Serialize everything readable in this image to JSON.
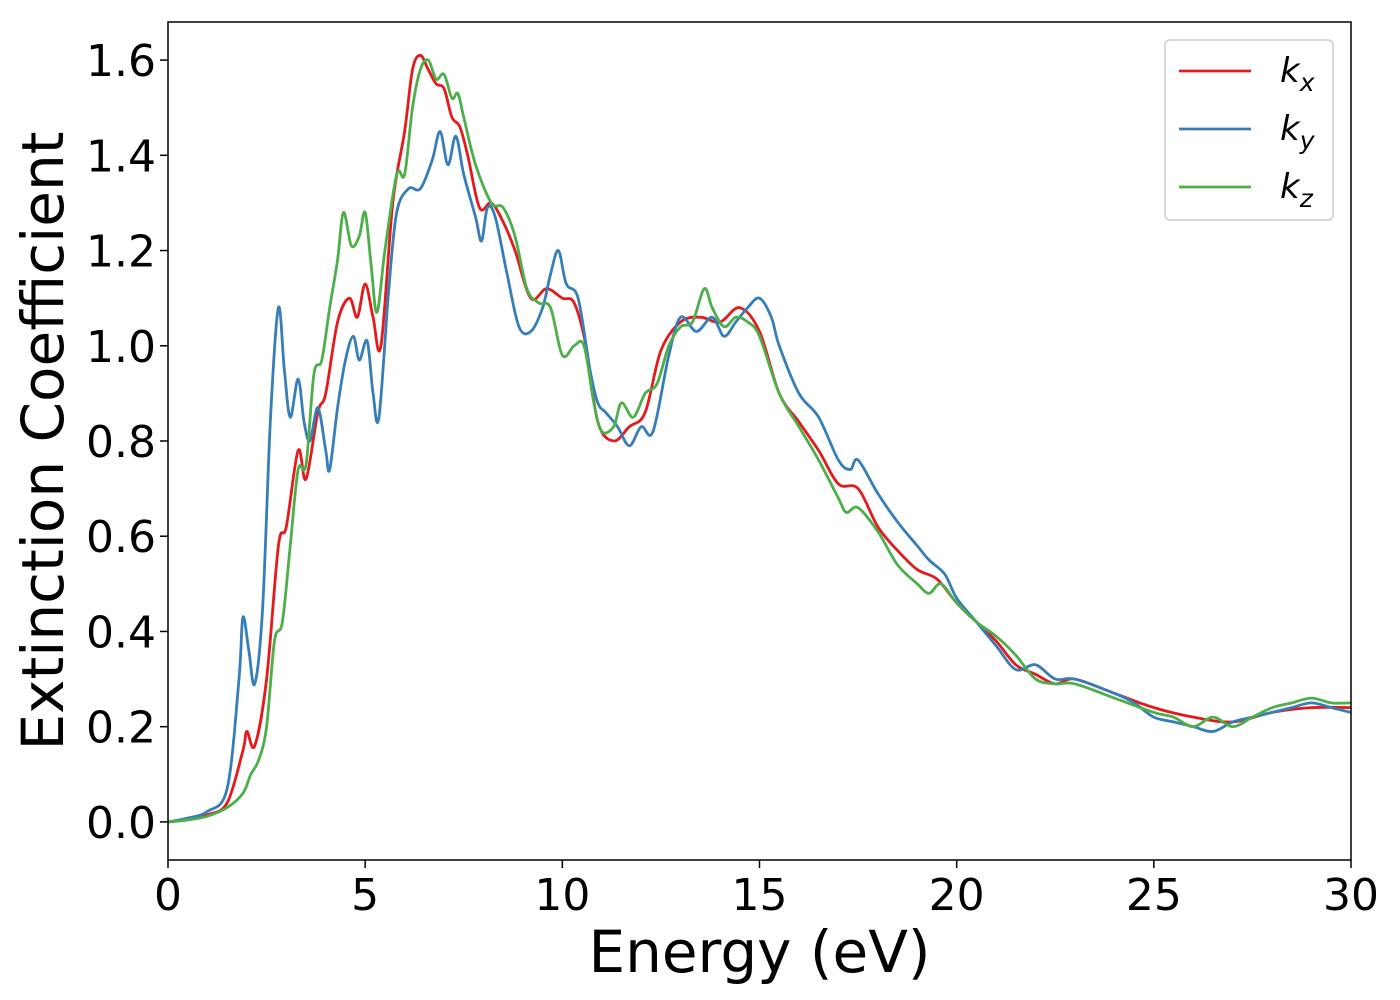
{
  "chart_data": {
    "type": "line",
    "title": "",
    "xlabel": "Energy (eV)",
    "ylabel": "Extinction Coefficient",
    "xlim": [
      0,
      30
    ],
    "ylim": [
      -0.08,
      1.68
    ],
    "xticks": [
      0,
      5,
      10,
      15,
      20,
      25,
      30
    ],
    "xtick_labels": [
      "0",
      "5",
      "10",
      "15",
      "20",
      "25",
      "30"
    ],
    "yticks": [
      0.0,
      0.2,
      0.4,
      0.6,
      0.8,
      1.0,
      1.2,
      1.4,
      1.6
    ],
    "ytick_labels": [
      "0.0",
      "0.2",
      "0.4",
      "0.6",
      "0.8",
      "1.0",
      "1.2",
      "1.4",
      "1.6"
    ],
    "grid": false,
    "legend_position": "top-right",
    "series": [
      {
        "name": "k",
        "subscript": "x",
        "color": "#e41a1c",
        "points": [
          [
            0,
            0
          ],
          [
            0.5,
            0.005
          ],
          [
            1,
            0.015
          ],
          [
            1.5,
            0.04
          ],
          [
            1.9,
            0.15
          ],
          [
            2.0,
            0.19
          ],
          [
            2.2,
            0.16
          ],
          [
            2.5,
            0.3
          ],
          [
            2.8,
            0.58
          ],
          [
            3.0,
            0.62
          ],
          [
            3.3,
            0.78
          ],
          [
            3.5,
            0.72
          ],
          [
            3.8,
            0.86
          ],
          [
            4.0,
            0.9
          ],
          [
            4.3,
            1.05
          ],
          [
            4.6,
            1.1
          ],
          [
            4.8,
            1.06
          ],
          [
            5.0,
            1.13
          ],
          [
            5.2,
            1.06
          ],
          [
            5.4,
            1.0
          ],
          [
            5.7,
            1.3
          ],
          [
            6.0,
            1.45
          ],
          [
            6.2,
            1.58
          ],
          [
            6.4,
            1.61
          ],
          [
            6.6,
            1.58
          ],
          [
            6.8,
            1.55
          ],
          [
            7.0,
            1.54
          ],
          [
            7.2,
            1.48
          ],
          [
            7.4,
            1.46
          ],
          [
            7.6,
            1.4
          ],
          [
            7.9,
            1.29
          ],
          [
            8.2,
            1.3
          ],
          [
            8.5,
            1.26
          ],
          [
            8.8,
            1.2
          ],
          [
            9.2,
            1.1
          ],
          [
            9.6,
            1.12
          ],
          [
            10.0,
            1.1
          ],
          [
            10.3,
            1.09
          ],
          [
            10.6,
            1.0
          ],
          [
            10.9,
            0.84
          ],
          [
            11.3,
            0.8
          ],
          [
            11.7,
            0.83
          ],
          [
            12.1,
            0.86
          ],
          [
            12.5,
            0.99
          ],
          [
            13.0,
            1.05
          ],
          [
            13.5,
            1.06
          ],
          [
            14.0,
            1.05
          ],
          [
            14.5,
            1.08
          ],
          [
            15.0,
            1.03
          ],
          [
            15.5,
            0.9
          ],
          [
            16.0,
            0.84
          ],
          [
            16.5,
            0.78
          ],
          [
            17.0,
            0.71
          ],
          [
            17.5,
            0.7
          ],
          [
            18.0,
            0.62
          ],
          [
            18.5,
            0.57
          ],
          [
            19.0,
            0.53
          ],
          [
            19.5,
            0.51
          ],
          [
            20.0,
            0.46
          ],
          [
            20.5,
            0.42
          ],
          [
            21.0,
            0.38
          ],
          [
            21.5,
            0.33
          ],
          [
            22.0,
            0.31
          ],
          [
            22.5,
            0.29
          ],
          [
            23.0,
            0.3
          ],
          [
            24.0,
            0.27
          ],
          [
            25.0,
            0.24
          ],
          [
            26.0,
            0.22
          ],
          [
            27.0,
            0.21
          ],
          [
            28.0,
            0.23
          ],
          [
            29.0,
            0.24
          ],
          [
            30.0,
            0.24
          ]
        ]
      },
      {
        "name": "k",
        "subscript": "y",
        "color": "#377eb8",
        "points": [
          [
            0,
            0
          ],
          [
            0.5,
            0.008
          ],
          [
            1,
            0.022
          ],
          [
            1.5,
            0.07
          ],
          [
            1.8,
            0.3
          ],
          [
            1.9,
            0.43
          ],
          [
            2.05,
            0.36
          ],
          [
            2.2,
            0.29
          ],
          [
            2.4,
            0.45
          ],
          [
            2.6,
            0.85
          ],
          [
            2.8,
            1.08
          ],
          [
            2.95,
            0.95
          ],
          [
            3.1,
            0.85
          ],
          [
            3.3,
            0.93
          ],
          [
            3.45,
            0.84
          ],
          [
            3.6,
            0.8
          ],
          [
            3.8,
            0.87
          ],
          [
            4.0,
            0.78
          ],
          [
            4.1,
            0.74
          ],
          [
            4.3,
            0.87
          ],
          [
            4.5,
            0.97
          ],
          [
            4.7,
            1.02
          ],
          [
            4.85,
            0.97
          ],
          [
            5.05,
            1.01
          ],
          [
            5.2,
            0.9
          ],
          [
            5.35,
            0.85
          ],
          [
            5.6,
            1.12
          ],
          [
            5.8,
            1.28
          ],
          [
            6.1,
            1.33
          ],
          [
            6.4,
            1.33
          ],
          [
            6.7,
            1.39
          ],
          [
            6.9,
            1.45
          ],
          [
            7.1,
            1.38
          ],
          [
            7.3,
            1.44
          ],
          [
            7.5,
            1.36
          ],
          [
            7.8,
            1.27
          ],
          [
            7.95,
            1.22
          ],
          [
            8.1,
            1.29
          ],
          [
            8.3,
            1.27
          ],
          [
            8.6,
            1.15
          ],
          [
            8.9,
            1.04
          ],
          [
            9.2,
            1.03
          ],
          [
            9.5,
            1.08
          ],
          [
            9.7,
            1.15
          ],
          [
            9.9,
            1.2
          ],
          [
            10.1,
            1.13
          ],
          [
            10.4,
            1.1
          ],
          [
            10.7,
            0.95
          ],
          [
            10.9,
            0.88
          ],
          [
            11.1,
            0.86
          ],
          [
            11.4,
            0.83
          ],
          [
            11.7,
            0.79
          ],
          [
            12.0,
            0.83
          ],
          [
            12.3,
            0.82
          ],
          [
            12.7,
            0.98
          ],
          [
            13.0,
            1.06
          ],
          [
            13.4,
            1.03
          ],
          [
            13.8,
            1.06
          ],
          [
            14.1,
            1.02
          ],
          [
            14.4,
            1.05
          ],
          [
            14.7,
            1.08
          ],
          [
            15.0,
            1.1
          ],
          [
            15.3,
            1.06
          ],
          [
            15.5,
            1.0
          ],
          [
            16.0,
            0.9
          ],
          [
            16.5,
            0.85
          ],
          [
            17.0,
            0.76
          ],
          [
            17.3,
            0.74
          ],
          [
            17.5,
            0.76
          ],
          [
            18.0,
            0.69
          ],
          [
            18.5,
            0.63
          ],
          [
            19.0,
            0.58
          ],
          [
            19.3,
            0.55
          ],
          [
            19.7,
            0.52
          ],
          [
            20.0,
            0.47
          ],
          [
            20.5,
            0.42
          ],
          [
            21.0,
            0.37
          ],
          [
            21.5,
            0.32
          ],
          [
            22.0,
            0.33
          ],
          [
            22.5,
            0.3
          ],
          [
            23.0,
            0.3
          ],
          [
            24.0,
            0.27
          ],
          [
            24.5,
            0.25
          ],
          [
            25.0,
            0.22
          ],
          [
            25.5,
            0.21
          ],
          [
            26.0,
            0.2
          ],
          [
            26.5,
            0.19
          ],
          [
            27.0,
            0.21
          ],
          [
            27.5,
            0.22
          ],
          [
            28.0,
            0.23
          ],
          [
            28.5,
            0.24
          ],
          [
            29.0,
            0.25
          ],
          [
            29.5,
            0.24
          ],
          [
            30.0,
            0.23
          ]
        ]
      },
      {
        "name": "k",
        "subscript": "z",
        "color": "#4daf4a",
        "points": [
          [
            0,
            0
          ],
          [
            0.5,
            0.004
          ],
          [
            1,
            0.012
          ],
          [
            1.5,
            0.03
          ],
          [
            1.9,
            0.06
          ],
          [
            2.1,
            0.1
          ],
          [
            2.3,
            0.13
          ],
          [
            2.5,
            0.2
          ],
          [
            2.7,
            0.38
          ],
          [
            2.9,
            0.42
          ],
          [
            3.1,
            0.58
          ],
          [
            3.3,
            0.74
          ],
          [
            3.5,
            0.75
          ],
          [
            3.7,
            0.94
          ],
          [
            3.9,
            0.97
          ],
          [
            4.1,
            1.08
          ],
          [
            4.3,
            1.18
          ],
          [
            4.45,
            1.28
          ],
          [
            4.65,
            1.21
          ],
          [
            4.85,
            1.23
          ],
          [
            5.0,
            1.28
          ],
          [
            5.15,
            1.17
          ],
          [
            5.3,
            1.07
          ],
          [
            5.5,
            1.2
          ],
          [
            5.8,
            1.36
          ],
          [
            6.0,
            1.36
          ],
          [
            6.2,
            1.5
          ],
          [
            6.4,
            1.58
          ],
          [
            6.6,
            1.6
          ],
          [
            6.8,
            1.56
          ],
          [
            7.0,
            1.57
          ],
          [
            7.2,
            1.52
          ],
          [
            7.35,
            1.53
          ],
          [
            7.5,
            1.48
          ],
          [
            7.8,
            1.38
          ],
          [
            8.2,
            1.3
          ],
          [
            8.5,
            1.29
          ],
          [
            8.8,
            1.23
          ],
          [
            9.1,
            1.12
          ],
          [
            9.4,
            1.09
          ],
          [
            9.7,
            1.08
          ],
          [
            10.0,
            0.98
          ],
          [
            10.3,
            1.0
          ],
          [
            10.55,
            1.0
          ],
          [
            10.8,
            0.88
          ],
          [
            11.0,
            0.82
          ],
          [
            11.3,
            0.83
          ],
          [
            11.5,
            0.88
          ],
          [
            11.8,
            0.85
          ],
          [
            12.1,
            0.9
          ],
          [
            12.4,
            0.92
          ],
          [
            12.7,
            1.0
          ],
          [
            13.0,
            1.04
          ],
          [
            13.3,
            1.05
          ],
          [
            13.6,
            1.12
          ],
          [
            13.8,
            1.08
          ],
          [
            14.1,
            1.04
          ],
          [
            14.4,
            1.06
          ],
          [
            14.7,
            1.05
          ],
          [
            15.0,
            1.02
          ],
          [
            15.5,
            0.9
          ],
          [
            16.0,
            0.83
          ],
          [
            16.5,
            0.76
          ],
          [
            17.0,
            0.68
          ],
          [
            17.2,
            0.65
          ],
          [
            17.5,
            0.66
          ],
          [
            18.0,
            0.61
          ],
          [
            18.5,
            0.54
          ],
          [
            19.0,
            0.5
          ],
          [
            19.3,
            0.48
          ],
          [
            19.6,
            0.5
          ],
          [
            20.0,
            0.46
          ],
          [
            20.5,
            0.42
          ],
          [
            21.0,
            0.39
          ],
          [
            21.5,
            0.35
          ],
          [
            22.0,
            0.3
          ],
          [
            22.5,
            0.29
          ],
          [
            23.0,
            0.29
          ],
          [
            24.0,
            0.26
          ],
          [
            25.0,
            0.23
          ],
          [
            25.5,
            0.22
          ],
          [
            26.0,
            0.2
          ],
          [
            26.5,
            0.22
          ],
          [
            27.0,
            0.2
          ],
          [
            27.5,
            0.22
          ],
          [
            28.0,
            0.24
          ],
          [
            28.5,
            0.25
          ],
          [
            29.0,
            0.26
          ],
          [
            29.5,
            0.25
          ],
          [
            30.0,
            0.25
          ]
        ]
      }
    ]
  }
}
